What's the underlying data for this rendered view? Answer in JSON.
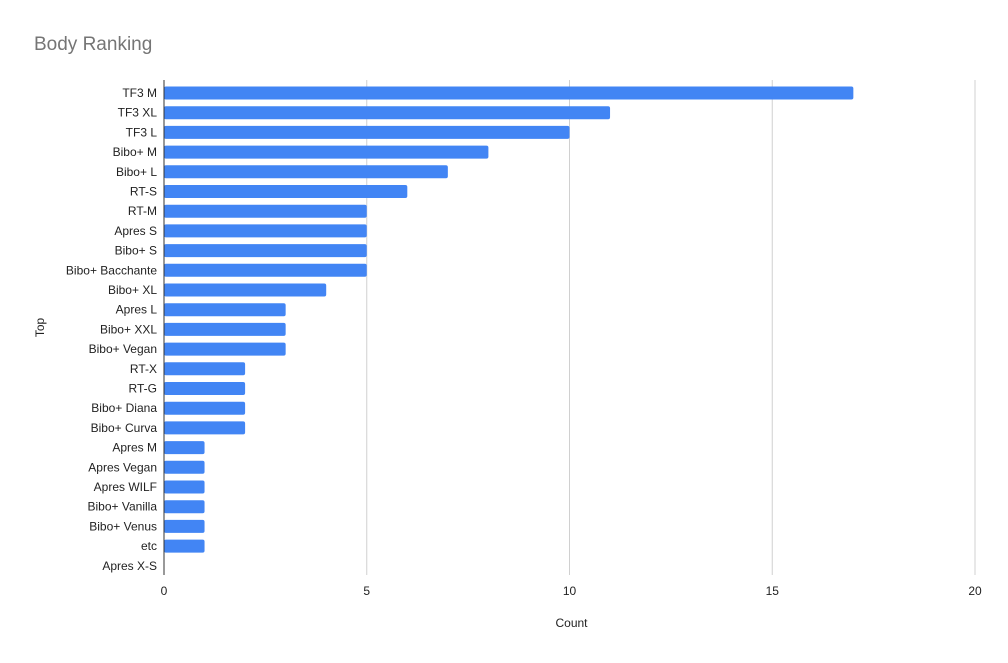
{
  "chart_data": {
    "type": "bar",
    "orientation": "horizontal",
    "title": "Body Ranking",
    "xlabel": "Count",
    "ylabel": "Top",
    "xlim": [
      0,
      20
    ],
    "x_ticks": [
      0,
      5,
      10,
      15,
      20
    ],
    "grid": true,
    "legend": "none",
    "bar_color": "#4285F4",
    "categories": [
      "TF3 M",
      "TF3 XL",
      "TF3 L",
      "Bibo+ M",
      "Bibo+ L",
      "RT-S",
      "RT-M",
      "Apres S",
      "Bibo+ S",
      "Bibo+ Bacchante",
      "Bibo+ XL",
      "Apres L",
      "Bibo+ XXL",
      "Bibo+ Vegan",
      "RT-X",
      "RT-G",
      "Bibo+ Diana",
      "Bibo+ Curva",
      "Apres M",
      "Apres Vegan",
      "Apres WILF",
      "Bibo+ Vanilla",
      "Bibo+ Venus",
      "etc",
      "Apres X-S"
    ],
    "values": [
      17,
      11,
      10,
      8,
      7,
      6,
      5,
      5,
      5,
      5,
      4,
      3,
      3,
      3,
      2,
      2,
      2,
      2,
      1,
      1,
      1,
      1,
      1,
      1,
      0
    ]
  }
}
